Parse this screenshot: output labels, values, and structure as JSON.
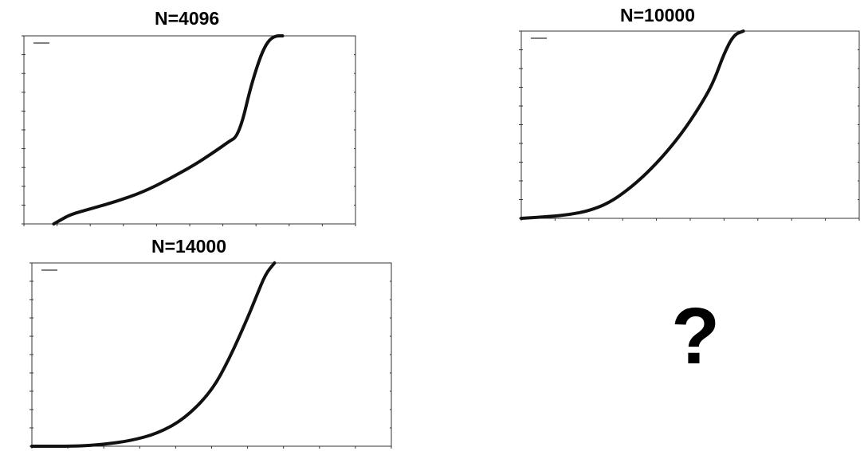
{
  "chart_data": [
    {
      "type": "line",
      "title": "N=4096",
      "xlim": [
        -30,
        20
      ],
      "ylim": [
        0,
        1
      ],
      "grid": false,
      "legend_position": "top-left",
      "series": [
        {
          "x": [
            -25.5,
            -24.5,
            -23,
            -20,
            -16,
            -12,
            -8,
            -4,
            -1,
            1,
            2,
            3,
            4,
            5,
            6,
            7,
            8,
            9
          ],
          "y": [
            0,
            0.02,
            0.05,
            0.08,
            0.12,
            0.17,
            0.24,
            0.32,
            0.39,
            0.44,
            0.46,
            0.55,
            0.7,
            0.82,
            0.92,
            0.98,
            1,
            1
          ]
        }
      ]
    },
    {
      "type": "line",
      "title": "N=10000",
      "xlim": [
        -15,
        20
      ],
      "ylim": [
        0,
        1
      ],
      "grid": false,
      "legend_position": "top-left",
      "series": [
        {
          "x": [
            -15,
            -12,
            -10,
            -8,
            -6,
            -4,
            -2,
            0,
            2,
            4,
            5,
            6,
            7,
            8
          ],
          "y": [
            0,
            0.01,
            0.02,
            0.04,
            0.08,
            0.15,
            0.24,
            0.35,
            0.48,
            0.64,
            0.74,
            0.88,
            0.98,
            1
          ]
        }
      ]
    },
    {
      "type": "line",
      "title": "N=14000",
      "xlim": [
        -20,
        20
      ],
      "ylim": [
        0,
        1
      ],
      "grid": false,
      "legend_position": "top-left",
      "series": [
        {
          "x": [
            -20,
            -15,
            -12,
            -9,
            -6,
            -3,
            0,
            2,
            4,
            5,
            6,
            7
          ],
          "y": [
            0,
            0,
            0.01,
            0.03,
            0.07,
            0.15,
            0.3,
            0.48,
            0.7,
            0.82,
            0.94,
            1
          ]
        }
      ]
    }
  ],
  "placeholder_text": "?",
  "colors": {
    "line": "#111111",
    "frame": "#333333",
    "background": "#ffffff"
  }
}
